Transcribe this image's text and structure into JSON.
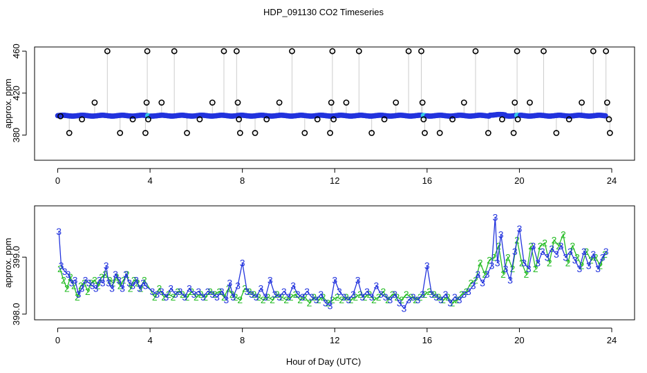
{
  "title": "HDP_091130  CO2 Timeseries",
  "xlabel": "Hour of Day (UTC)",
  "colors": {
    "main": "#2233dd",
    "secondary": "#22bb22",
    "marker_alt": "#33c8e8",
    "spike_line": "#999999",
    "axis": "#000000"
  },
  "chart_data": [
    {
      "type": "scatter",
      "panel": "top",
      "ylabel": "approx. ppm",
      "xlim": [
        0,
        24
      ],
      "ylim": [
        356,
        464
      ],
      "x_ticks": [
        "0",
        "4",
        "8",
        "12",
        "16",
        "20",
        "24"
      ],
      "y_ticks": [
        "380",
        "420",
        "460"
      ],
      "baseline_ppm": 398.5,
      "baseline_start_hour": 0.0,
      "baseline_end_hour": 23.75,
      "gap_hours": [
        3.95,
        15.9,
        19.95
      ],
      "outliers": [
        {
          "x": 0.12,
          "y": 398
        },
        {
          "x": 0.5,
          "y": 382
        },
        {
          "x": 1.05,
          "y": 395
        },
        {
          "x": 1.6,
          "y": 411
        },
        {
          "x": 2.15,
          "y": 460
        },
        {
          "x": 2.7,
          "y": 382
        },
        {
          "x": 3.25,
          "y": 395
        },
        {
          "x": 3.8,
          "y": 382
        },
        {
          "x": 3.85,
          "y": 411
        },
        {
          "x": 3.88,
          "y": 460
        },
        {
          "x": 3.92,
          "y": 395
        },
        {
          "x": 4.5,
          "y": 411
        },
        {
          "x": 5.05,
          "y": 460
        },
        {
          "x": 5.6,
          "y": 382
        },
        {
          "x": 6.15,
          "y": 395
        },
        {
          "x": 6.7,
          "y": 411
        },
        {
          "x": 7.2,
          "y": 460
        },
        {
          "x": 7.75,
          "y": 460
        },
        {
          "x": 7.8,
          "y": 411
        },
        {
          "x": 7.85,
          "y": 395
        },
        {
          "x": 7.9,
          "y": 382
        },
        {
          "x": 8.55,
          "y": 382
        },
        {
          "x": 9.05,
          "y": 395
        },
        {
          "x": 9.6,
          "y": 411
        },
        {
          "x": 10.15,
          "y": 460
        },
        {
          "x": 10.7,
          "y": 382
        },
        {
          "x": 11.25,
          "y": 395
        },
        {
          "x": 11.8,
          "y": 382
        },
        {
          "x": 11.85,
          "y": 411
        },
        {
          "x": 11.9,
          "y": 460
        },
        {
          "x": 11.95,
          "y": 395
        },
        {
          "x": 12.5,
          "y": 411
        },
        {
          "x": 13.05,
          "y": 460
        },
        {
          "x": 13.6,
          "y": 382
        },
        {
          "x": 14.15,
          "y": 395
        },
        {
          "x": 14.65,
          "y": 411
        },
        {
          "x": 15.2,
          "y": 460
        },
        {
          "x": 15.75,
          "y": 460
        },
        {
          "x": 15.8,
          "y": 411
        },
        {
          "x": 15.85,
          "y": 395
        },
        {
          "x": 15.9,
          "y": 382
        },
        {
          "x": 16.55,
          "y": 382
        },
        {
          "x": 17.1,
          "y": 395
        },
        {
          "x": 17.6,
          "y": 411
        },
        {
          "x": 18.1,
          "y": 460
        },
        {
          "x": 18.65,
          "y": 382
        },
        {
          "x": 19.25,
          "y": 395
        },
        {
          "x": 19.75,
          "y": 382
        },
        {
          "x": 19.8,
          "y": 411
        },
        {
          "x": 19.9,
          "y": 460
        },
        {
          "x": 19.93,
          "y": 395
        },
        {
          "x": 20.45,
          "y": 411
        },
        {
          "x": 21.05,
          "y": 460
        },
        {
          "x": 21.6,
          "y": 382
        },
        {
          "x": 22.15,
          "y": 395
        },
        {
          "x": 22.7,
          "y": 411
        },
        {
          "x": 23.2,
          "y": 460
        },
        {
          "x": 23.75,
          "y": 460
        },
        {
          "x": 23.8,
          "y": 411
        },
        {
          "x": 23.88,
          "y": 395
        },
        {
          "x": 23.92,
          "y": 382
        }
      ]
    },
    {
      "type": "line",
      "panel": "bottom",
      "ylabel": "approx. ppm",
      "xlim": [
        0,
        24
      ],
      "ylim": [
        397.9,
        399.9
      ],
      "x_ticks": [
        "0",
        "4",
        "8",
        "12",
        "16",
        "20",
        "24"
      ],
      "y_ticks": [
        "398.0",
        "399.0"
      ],
      "series": [
        {
          "name": "3",
          "label": "3",
          "x": [
            0.05,
            0.15,
            0.3,
            0.45,
            0.6,
            0.75,
            0.9,
            1.05,
            1.2,
            1.35,
            1.5,
            1.65,
            1.8,
            1.95,
            2.1,
            2.2,
            2.35,
            2.5,
            2.65,
            2.8,
            2.95,
            3.1,
            3.25,
            3.4,
            3.55,
            3.7,
            3.8,
            4.1,
            4.3,
            4.5,
            4.7,
            4.9,
            5.1,
            5.3,
            5.5,
            5.7,
            5.9,
            6.1,
            6.3,
            6.5,
            6.7,
            6.9,
            7.1,
            7.3,
            7.45,
            7.6,
            7.8,
            8.0,
            8.2,
            8.4,
            8.6,
            8.8,
            9.0,
            9.2,
            9.4,
            9.6,
            9.8,
            10.0,
            10.2,
            10.4,
            10.6,
            10.8,
            11.0,
            11.2,
            11.4,
            11.6,
            11.8,
            12.0,
            12.2,
            12.4,
            12.6,
            12.8,
            13.0,
            13.2,
            13.4,
            13.6,
            13.8,
            14.0,
            14.2,
            14.4,
            14.6,
            14.8,
            15.0,
            15.2,
            15.4,
            15.6,
            15.8,
            16.0,
            16.2,
            16.4,
            16.6,
            16.8,
            17.0,
            17.2,
            17.4,
            17.6,
            17.8,
            18.0,
            18.2,
            18.4,
            18.6,
            18.8,
            18.95,
            19.05,
            19.2,
            19.4,
            19.6,
            19.8,
            20.0,
            20.2,
            20.4,
            20.6,
            20.8,
            21.0,
            21.2,
            21.4,
            21.6,
            21.8,
            22.0,
            22.2,
            22.4,
            22.6,
            22.8,
            23.0,
            23.2,
            23.4,
            23.6,
            23.75
          ],
          "y": [
            399.45,
            398.85,
            398.75,
            398.7,
            398.55,
            398.6,
            398.35,
            398.45,
            398.6,
            398.55,
            398.5,
            398.45,
            398.6,
            398.55,
            398.85,
            398.55,
            398.45,
            398.7,
            398.6,
            398.45,
            398.7,
            398.55,
            398.5,
            398.6,
            398.45,
            398.55,
            398.5,
            398.4,
            398.35,
            398.4,
            398.3,
            398.45,
            398.35,
            398.4,
            398.3,
            398.45,
            398.35,
            398.4,
            398.3,
            398.4,
            398.35,
            398.3,
            398.4,
            398.25,
            398.55,
            398.3,
            398.5,
            398.9,
            398.4,
            398.35,
            398.3,
            398.45,
            398.3,
            398.6,
            398.35,
            398.3,
            398.4,
            398.3,
            398.5,
            398.35,
            398.3,
            398.4,
            398.3,
            398.25,
            398.35,
            398.2,
            398.15,
            398.6,
            398.4,
            398.3,
            398.25,
            398.35,
            398.6,
            398.3,
            398.4,
            398.3,
            398.5,
            398.35,
            398.3,
            398.25,
            398.35,
            398.2,
            398.1,
            398.25,
            398.3,
            398.25,
            398.35,
            398.85,
            398.35,
            398.3,
            398.25,
            398.35,
            398.2,
            398.3,
            398.25,
            398.35,
            398.4,
            398.5,
            398.7,
            398.55,
            398.7,
            398.85,
            399.7,
            398.9,
            399.4,
            398.8,
            398.6,
            399.1,
            399.5,
            398.9,
            398.8,
            399.2,
            398.9,
            399.1,
            399.0,
            399.15,
            399.05,
            399.2,
            399.0,
            399.1,
            398.95,
            398.8,
            399.1,
            398.85,
            399.05,
            398.8,
            399.0,
            399.1
          ]
        },
        {
          "name": "2",
          "label": "2",
          "x": [
            0.1,
            0.25,
            0.4,
            0.55,
            0.7,
            0.85,
            1.0,
            1.15,
            1.3,
            1.45,
            1.6,
            1.75,
            1.9,
            2.05,
            2.25,
            2.4,
            2.55,
            2.7,
            2.85,
            3.0,
            3.15,
            3.3,
            3.45,
            3.6,
            3.75,
            4.2,
            4.4,
            4.6,
            4.8,
            5.0,
            5.2,
            5.4,
            5.6,
            5.8,
            6.0,
            6.2,
            6.4,
            6.6,
            6.8,
            7.0,
            7.2,
            7.4,
            7.55,
            7.7,
            7.9,
            8.1,
            8.3,
            8.5,
            8.7,
            8.9,
            9.1,
            9.3,
            9.5,
            9.7,
            9.9,
            10.1,
            10.3,
            10.5,
            10.7,
            10.9,
            11.1,
            11.3,
            11.5,
            11.7,
            11.9,
            12.1,
            12.3,
            12.5,
            12.7,
            12.9,
            13.1,
            13.3,
            13.5,
            13.7,
            13.9,
            14.1,
            14.3,
            14.5,
            14.7,
            14.9,
            15.1,
            15.3,
            15.5,
            15.7,
            15.9,
            16.1,
            16.3,
            16.5,
            16.7,
            16.9,
            17.1,
            17.3,
            17.5,
            17.7,
            17.9,
            18.1,
            18.3,
            18.5,
            18.7,
            18.9,
            19.1,
            19.3,
            19.5,
            19.7,
            19.9,
            20.1,
            20.3,
            20.5,
            20.7,
            20.9,
            21.1,
            21.3,
            21.5,
            21.7,
            21.9,
            22.1,
            22.3,
            22.5,
            22.7,
            22.9,
            23.1,
            23.3,
            23.5,
            23.7
          ],
          "y": [
            398.8,
            398.6,
            398.45,
            398.65,
            398.5,
            398.3,
            398.5,
            398.55,
            398.4,
            398.55,
            398.6,
            398.5,
            398.65,
            398.7,
            398.6,
            398.55,
            398.65,
            398.5,
            398.6,
            398.7,
            398.45,
            398.6,
            398.55,
            398.45,
            398.6,
            398.3,
            398.45,
            398.3,
            398.35,
            398.3,
            398.4,
            398.35,
            398.3,
            398.4,
            398.3,
            398.35,
            398.3,
            398.4,
            398.35,
            398.4,
            398.3,
            398.45,
            398.35,
            398.3,
            398.25,
            398.45,
            398.4,
            398.35,
            398.3,
            398.25,
            398.3,
            398.25,
            398.35,
            398.3,
            398.25,
            398.3,
            398.35,
            398.25,
            398.3,
            398.2,
            398.3,
            398.25,
            398.3,
            398.2,
            398.25,
            398.3,
            398.25,
            398.3,
            398.25,
            398.3,
            398.35,
            398.3,
            398.35,
            398.25,
            398.3,
            398.4,
            398.25,
            398.35,
            398.3,
            398.25,
            398.35,
            398.3,
            398.25,
            398.3,
            398.35,
            398.4,
            398.35,
            398.3,
            398.25,
            398.3,
            398.2,
            398.25,
            398.35,
            398.4,
            398.55,
            398.6,
            398.9,
            398.7,
            398.95,
            399.0,
            399.2,
            398.7,
            399.0,
            398.8,
            399.3,
            398.9,
            398.7,
            399.2,
            398.8,
            399.2,
            399.25,
            398.9,
            399.3,
            399.2,
            399.4,
            398.9,
            399.2,
            399.0,
            398.85,
            399.1,
            398.95,
            399.0,
            398.85,
            399.05
          ]
        }
      ]
    }
  ]
}
